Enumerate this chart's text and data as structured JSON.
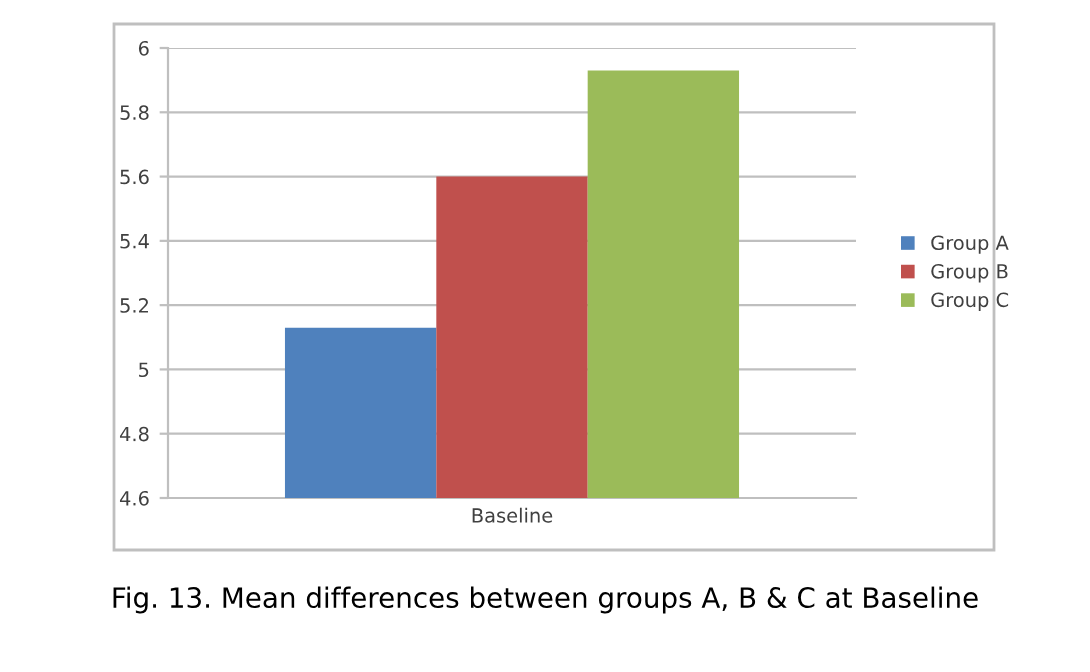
{
  "chart_data": {
    "type": "bar",
    "categories": [
      "Baseline"
    ],
    "series": [
      {
        "name": "Group A",
        "color": "#4f81bd",
        "values": [
          5.13
        ]
      },
      {
        "name": "Group B",
        "color": "#c0504d",
        "values": [
          5.6
        ]
      },
      {
        "name": "Group C",
        "color": "#9bbb59",
        "values": [
          5.93
        ]
      }
    ],
    "ylim": [
      4.6,
      6
    ],
    "yticks": [
      4.6,
      4.8,
      5,
      5.2,
      5.4,
      5.6,
      5.8,
      6
    ],
    "grid": "y",
    "legend": "right",
    "annotations": [
      "Fig. 13. Mean differences between groups A, B & C at Baseline"
    ]
  }
}
